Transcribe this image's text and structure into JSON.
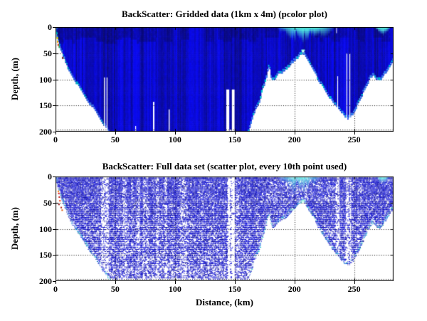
{
  "window": {
    "background": "#ffffff"
  },
  "chart_data": [
    {
      "id": "gridded-pcolor",
      "type": "heatmap",
      "title": "BackScatter: Gridded data (1km x 4m) (pcolor plot)",
      "xlabel": "",
      "ylabel": "Depth, (m)",
      "xlim": [
        0,
        283
      ],
      "ylim": [
        0,
        200
      ],
      "y_axis_inverted": true,
      "grid": "dotted",
      "x_ticks": [
        0,
        50,
        100,
        150,
        200,
        250
      ],
      "y_ticks": [
        0,
        50,
        100,
        150,
        200
      ],
      "cell_size_note": "1km x 4m grid cells",
      "colors": {
        "deep_blue": "#1414c8",
        "dark_blue": "#000090",
        "light_blue": "#3c8cf0",
        "cyan": "#46e6e0",
        "no_data": "#ffffff",
        "axis": "#000000"
      },
      "seafloor_profile_km_m": [
        [
          0,
          6
        ],
        [
          1,
          14
        ],
        [
          2,
          24
        ],
        [
          3,
          31
        ],
        [
          4,
          37
        ],
        [
          6,
          50
        ],
        [
          8,
          62
        ],
        [
          10,
          74
        ],
        [
          13,
          89
        ],
        [
          16,
          100
        ],
        [
          20,
          112
        ],
        [
          24,
          127
        ],
        [
          28,
          143
        ],
        [
          32,
          153
        ],
        [
          36,
          168
        ],
        [
          40,
          183
        ],
        [
          43,
          193
        ],
        [
          46,
          202
        ],
        [
          48,
          210
        ],
        [
          100,
          210
        ],
        [
          160,
          210
        ],
        [
          163,
          188
        ],
        [
          166,
          163
        ],
        [
          169,
          148
        ],
        [
          171,
          139
        ],
        [
          173,
          119
        ],
        [
          176,
          99
        ],
        [
          178,
          76
        ],
        [
          179,
          71
        ],
        [
          180,
          88
        ],
        [
          181,
          97
        ],
        [
          183,
          99
        ],
        [
          186,
          88
        ],
        [
          189,
          85
        ],
        [
          192,
          81
        ],
        [
          196,
          71
        ],
        [
          200,
          63
        ],
        [
          203,
          55
        ],
        [
          207,
          47
        ],
        [
          209,
          53
        ],
        [
          212,
          66
        ],
        [
          216,
          79
        ],
        [
          220,
          99
        ],
        [
          224,
          113
        ],
        [
          228,
          127
        ],
        [
          232,
          141
        ],
        [
          236,
          152
        ],
        [
          239,
          160
        ],
        [
          242,
          168
        ],
        [
          245,
          173
        ],
        [
          247,
          167
        ],
        [
          249,
          164
        ],
        [
          252,
          150
        ],
        [
          255,
          137
        ],
        [
          258,
          121
        ],
        [
          261,
          107
        ],
        [
          263,
          96
        ],
        [
          266,
          90
        ],
        [
          269,
          99
        ],
        [
          272,
          100
        ],
        [
          276,
          86
        ],
        [
          280,
          71
        ],
        [
          283,
          60
        ]
      ],
      "data_gaps_km_depth": [
        {
          "x0": 40.6,
          "x1": 41.6,
          "d0": 96,
          "d1": 200
        },
        {
          "x0": 42.6,
          "x1": 43.6,
          "d0": 96,
          "d1": 200
        },
        {
          "x0": 66.6,
          "x1": 67.6,
          "d0": 189,
          "d1": 200
        },
        {
          "x0": 81.6,
          "x1": 82.8,
          "d0": 143,
          "d1": 200
        },
        {
          "x0": 94.6,
          "x1": 95.7,
          "d0": 157,
          "d1": 200
        },
        {
          "x0": 143.0,
          "x1": 145.6,
          "d0": 119,
          "d1": 200
        },
        {
          "x0": 145.6,
          "x1": 147.5,
          "d0": 196,
          "d1": 200
        },
        {
          "x0": 147.5,
          "x1": 150.0,
          "d0": 119,
          "d1": 200
        },
        {
          "x0": 234.9,
          "x1": 235.7,
          "d0": 0,
          "d1": 12
        },
        {
          "x0": 235.8,
          "x1": 236.7,
          "d0": 94,
          "d1": 158
        },
        {
          "x0": 243.4,
          "x1": 244.4,
          "d0": 50,
          "d1": 189
        },
        {
          "x0": 245.9,
          "x1": 246.9,
          "d0": 50,
          "d1": 189
        }
      ],
      "surface_high_backscatter_patches": [
        {
          "x0": 186,
          "x1": 233,
          "max_depth": 26,
          "peak": 0.9
        },
        {
          "x0": 268,
          "x1": 280,
          "max_depth": 14,
          "peak": 1.0
        },
        {
          "x0": 0,
          "x1": 1.6,
          "max_depth": 12,
          "peak": 0.55
        }
      ],
      "shelf_edge_features": [
        {
          "x": 0.9,
          "d": 19,
          "color": "#d8d800"
        },
        {
          "x": 1.2,
          "d": 26,
          "color": "#f0a800"
        },
        {
          "x": 1.7,
          "d": 32,
          "color": "#c83000"
        },
        {
          "x": 5.5,
          "d": 57,
          "color": "#5a1a10"
        },
        {
          "x": 2.6,
          "d": 36,
          "color": "#28a850"
        },
        {
          "x": 0.5,
          "d": 10,
          "color": "#00c8c8"
        }
      ],
      "ridge_peak": {
        "x": 207,
        "depth": 47,
        "highlight": "#d8fff2"
      }
    },
    {
      "id": "full-scatter",
      "type": "scatter",
      "title": "BackScatter: Full data set (scatter plot, every 10th point used)",
      "xlabel": "Distance, (km)",
      "ylabel": "Depth, (m)",
      "xlim": [
        0,
        283
      ],
      "ylim": [
        0,
        200
      ],
      "y_axis_inverted": true,
      "grid": "dotted",
      "x_ticks": [
        0,
        50,
        100,
        150,
        200,
        250
      ],
      "y_ticks": [
        0,
        50,
        100,
        150,
        200
      ],
      "max_data_depth": 193,
      "colors": {
        "deep_blue": "#0d0dcc",
        "dark_blue": "#000090",
        "light_blue": "#3c8cf0",
        "cyan": "#46e6e0",
        "no_data": "#ffffff",
        "axis": "#000000"
      },
      "seafloor_profile_km_m": [
        [
          0,
          6
        ],
        [
          1,
          14
        ],
        [
          2,
          24
        ],
        [
          3,
          31
        ],
        [
          4,
          37
        ],
        [
          6,
          50
        ],
        [
          8,
          62
        ],
        [
          10,
          74
        ],
        [
          13,
          89
        ],
        [
          16,
          100
        ],
        [
          20,
          112
        ],
        [
          24,
          127
        ],
        [
          28,
          143
        ],
        [
          32,
          153
        ],
        [
          36,
          168
        ],
        [
          40,
          183
        ],
        [
          43,
          193
        ],
        [
          46,
          202
        ],
        [
          48,
          210
        ],
        [
          100,
          210
        ],
        [
          160,
          210
        ],
        [
          163,
          188
        ],
        [
          166,
          163
        ],
        [
          169,
          148
        ],
        [
          171,
          139
        ],
        [
          173,
          119
        ],
        [
          176,
          99
        ],
        [
          178,
          76
        ],
        [
          179,
          71
        ],
        [
          180,
          88
        ],
        [
          181,
          97
        ],
        [
          183,
          99
        ],
        [
          186,
          88
        ],
        [
          189,
          85
        ],
        [
          192,
          81
        ],
        [
          196,
          71
        ],
        [
          200,
          63
        ],
        [
          203,
          55
        ],
        [
          207,
          47
        ],
        [
          209,
          53
        ],
        [
          212,
          66
        ],
        [
          216,
          79
        ],
        [
          220,
          99
        ],
        [
          224,
          113
        ],
        [
          228,
          127
        ],
        [
          232,
          141
        ],
        [
          236,
          152
        ],
        [
          239,
          160
        ],
        [
          242,
          168
        ],
        [
          245,
          173
        ],
        [
          247,
          167
        ],
        [
          249,
          164
        ],
        [
          252,
          150
        ],
        [
          255,
          137
        ],
        [
          258,
          121
        ],
        [
          261,
          107
        ],
        [
          263,
          96
        ],
        [
          266,
          90
        ],
        [
          269,
          99
        ],
        [
          272,
          100
        ],
        [
          276,
          86
        ],
        [
          280,
          71
        ],
        [
          283,
          60
        ]
      ],
      "sparse_ping_bands": [
        {
          "x0": 38,
          "x1": 44,
          "factor": 0.35
        },
        {
          "x0": 56,
          "x1": 59,
          "factor": 0.6
        },
        {
          "x0": 68,
          "x1": 70,
          "factor": 0.5
        },
        {
          "x0": 73,
          "x1": 77,
          "factor": 0.65
        },
        {
          "x0": 84,
          "x1": 86,
          "factor": 0.5
        },
        {
          "x0": 91,
          "x1": 93,
          "factor": 0.55
        },
        {
          "x0": 104,
          "x1": 109,
          "factor": 0.6
        },
        {
          "x0": 143.8,
          "x1": 149.8,
          "factor": 0.06
        },
        {
          "x0": 145.7,
          "x1": 147.2,
          "factor": 0.45
        },
        {
          "x0": 151,
          "x1": 153,
          "factor": 0.65
        },
        {
          "x0": 234.5,
          "x1": 237,
          "factor": 0.35
        },
        {
          "x0": 242.8,
          "x1": 245.2,
          "factor": 0.28
        },
        {
          "x0": 245.8,
          "x1": 247.3,
          "factor": 0.28
        }
      ],
      "surface_high_backscatter_patches": [
        {
          "x0": 186,
          "x1": 222,
          "max_depth": 32,
          "peak": 0.85
        },
        {
          "x0": 268,
          "x1": 279,
          "max_depth": 16,
          "peak": 1.0
        },
        {
          "x0": 0,
          "x1": 2,
          "max_depth": 14,
          "peak": 0.6
        }
      ],
      "shelf_edge_features": [
        {
          "x": 1.8,
          "d": 27,
          "color": "#ff8800"
        },
        {
          "x": 2.2,
          "d": 31,
          "color": "#e00000"
        },
        {
          "x": 2.6,
          "d": 38,
          "color": "#c00000"
        },
        {
          "x": 3.1,
          "d": 45,
          "color": "#ff3300"
        },
        {
          "x": 2.3,
          "d": 52,
          "color": "#8b0000"
        },
        {
          "x": 4.2,
          "d": 58,
          "color": "#a81000"
        },
        {
          "x": 5.0,
          "d": 63,
          "color": "#d85000"
        }
      ],
      "ridge_peak": {
        "x": 207,
        "depth": 47,
        "highlight": "#ccffee"
      }
    }
  ]
}
